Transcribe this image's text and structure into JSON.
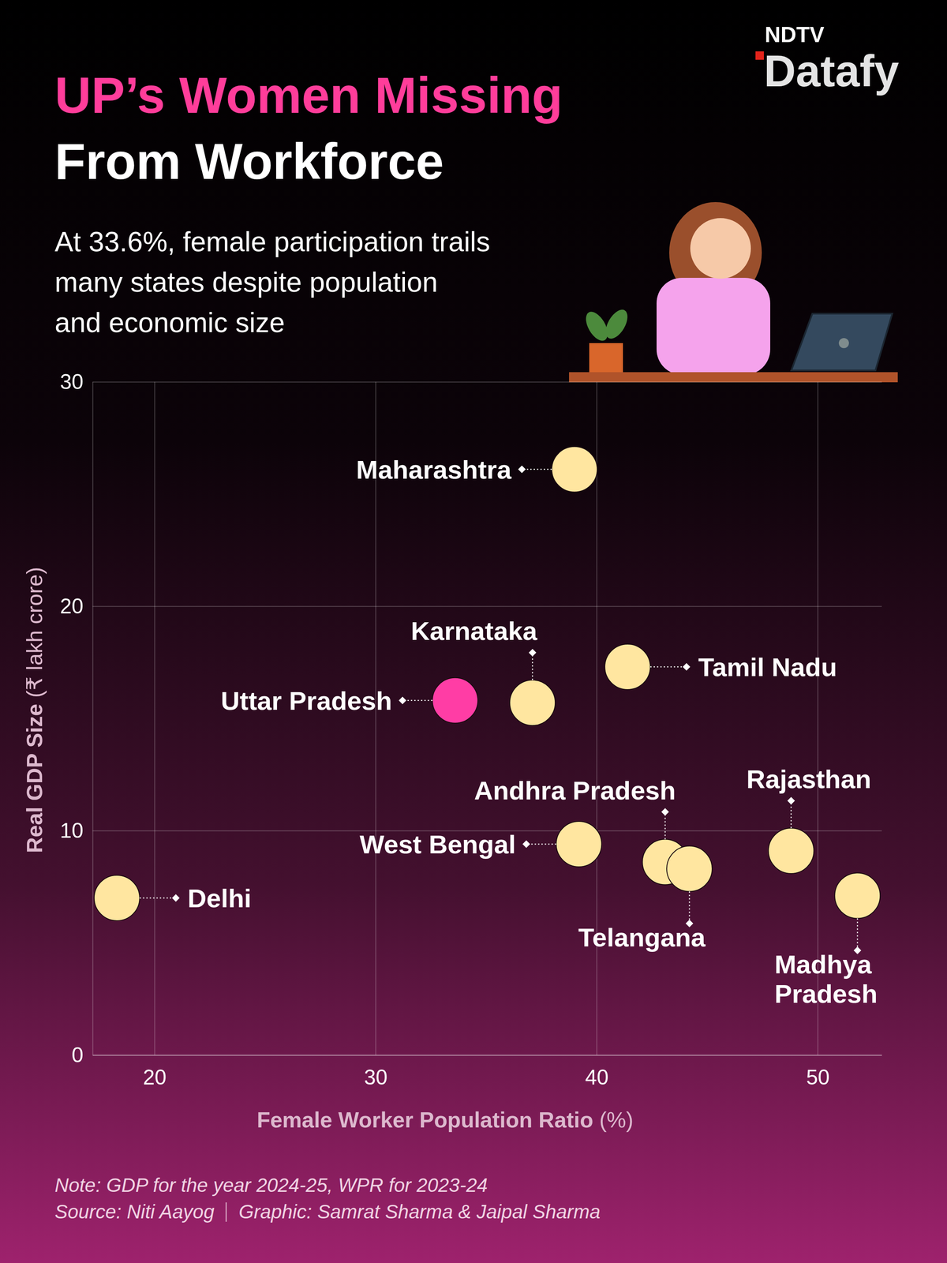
{
  "chart_data": {
    "type": "scatter",
    "title": [
      "UP’s Women Missing",
      "From Workforce"
    ],
    "subtitle": [
      "At 33.6%, female participation trails",
      "many states despite population",
      "and economic size"
    ],
    "brand": [
      "NDTV",
      "Datafy"
    ],
    "x_label": "Female Worker Population Ratio (%)",
    "y_label": "Real GDP Size (₹ lakh crore)",
    "labels": [
      "Maharashtra",
      "Karnataka",
      "Uttar Pradesh",
      "Tamil Nadu",
      "Andhra Pradesh",
      "West Bengal",
      "Telangana",
      "Rajasthan",
      "Madhya Pradesh",
      "Delhi"
    ],
    "x": [
      39.0,
      37.1,
      33.6,
      41.4,
      43.1,
      39.2,
      44.2,
      48.8,
      51.8,
      18.3
    ],
    "values": [
      26.1,
      15.7,
      15.8,
      17.3,
      8.6,
      9.4,
      8.3,
      9.1,
      7.1,
      7.0
    ],
    "colors": [
      "#ffe6a0",
      "#ffe6a0",
      "#ff3da5",
      "#ffe6a0",
      "#ffe6a0",
      "#ffe6a0",
      "#ffe6a0",
      "#ffe6a0",
      "#ffe6a0",
      "#ffe6a0"
    ],
    "xlim": [
      17.2,
      52.9
    ],
    "ylim": [
      0,
      30
    ],
    "xticks": [
      20,
      30,
      40,
      50
    ],
    "yticks": [
      0,
      10,
      20,
      30
    ],
    "grid": true,
    "note": "Note: GDP for the year 2024-25, WPR for 2023-24",
    "source": "Source: Niti Aayog",
    "credit": "Graphic: Samrat Sharma & Jaipal Sharma"
  }
}
